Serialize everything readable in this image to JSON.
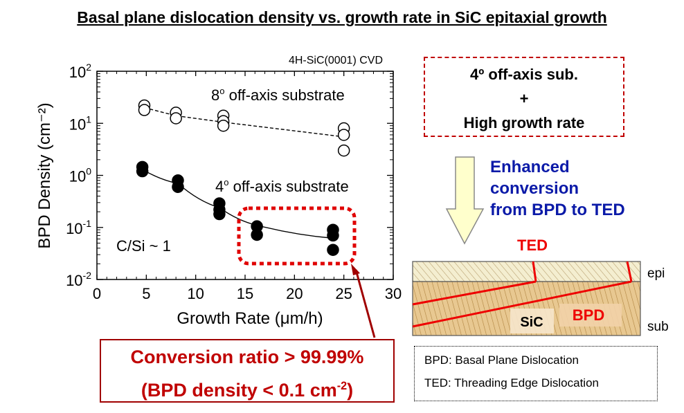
{
  "slide_title": "Basal plane dislocation density vs. growth rate in SiC epitaxial growth",
  "chart_data": {
    "type": "scatter",
    "annotation_condition": "4H-SiC(0001) CVD",
    "xlabel": "Growth Rate (μm/h)",
    "ylabel": "BPD Density (cm⁻²)",
    "xlim": [
      0,
      30
    ],
    "ylim_log10": [
      -2,
      2
    ],
    "y_scale": "log",
    "x_ticks": [
      "0",
      "5",
      "10",
      "15",
      "20",
      "25",
      "30"
    ],
    "y_ticks": [
      {
        "base": "10",
        "exp": "-2"
      },
      {
        "base": "10",
        "exp": "-1"
      },
      {
        "base": "10",
        "exp": "0"
      },
      {
        "base": "10",
        "exp": "1"
      },
      {
        "base": "10",
        "exp": "2"
      }
    ],
    "ratio_label": "C/Si ~ 1",
    "series": [
      {
        "name_base": "8",
        "name_sup": "o",
        "name_rest": " off-axis substrate",
        "marker": "open-circle",
        "line": "dashed",
        "points": [
          [
            4.8,
            22
          ],
          [
            4.8,
            18
          ],
          [
            8,
            16
          ],
          [
            8,
            12.5
          ],
          [
            12.8,
            14
          ],
          [
            12.8,
            11
          ],
          [
            12.8,
            9
          ],
          [
            25,
            8
          ],
          [
            25,
            6
          ],
          [
            25,
            3
          ]
        ],
        "trend": [
          [
            4.8,
            20
          ],
          [
            8,
            14
          ],
          [
            12.8,
            10.5
          ],
          [
            25,
            5.5
          ]
        ]
      },
      {
        "name_base": "4",
        "name_sup": "o",
        "name_rest": " off-axis substrate",
        "marker": "filled-circle",
        "line": "solid",
        "points": [
          [
            4.6,
            1.45
          ],
          [
            4.6,
            1.2
          ],
          [
            8.2,
            0.8
          ],
          [
            8.2,
            0.6
          ],
          [
            12.4,
            0.29
          ],
          [
            12.4,
            0.22
          ],
          [
            12.4,
            0.18
          ],
          [
            16.2,
            0.105
          ],
          [
            16.2,
            0.072
          ],
          [
            23.9,
            0.09
          ],
          [
            23.9,
            0.07
          ],
          [
            23.9,
            0.037
          ]
        ],
        "trend": [
          [
            4.6,
            1.3
          ],
          [
            8.2,
            0.7
          ],
          [
            12.4,
            0.24
          ],
          [
            16.2,
            0.11
          ],
          [
            23.9,
            0.062
          ]
        ]
      }
    ],
    "highlight_region_color": "#e00000"
  },
  "condition_box": {
    "line1": "4º off-axis sub.",
    "line2": "+",
    "line3": "High growth rate"
  },
  "result_text": {
    "line1": "Enhanced",
    "line2": "conversion",
    "line3": "from BPD to TED"
  },
  "schematic": {
    "ted_label": "TED",
    "epi_label": "epi",
    "sub_label": "sub",
    "sic_label": "SiC",
    "bpd_label": "BPD"
  },
  "legend": {
    "bpd": "BPD: Basal Plane Dislocation",
    "ted": "TED: Threading Edge Dislocation"
  },
  "conversion": {
    "line1": "Conversion ratio > 99.99%",
    "line2_a": "(BPD density < 0.1 cm",
    "line2_sup": "-2",
    "line2_b": ")"
  },
  "colors": {
    "red": "#e00000",
    "dark_red": "#a00000",
    "blue": "#0b1aa8",
    "arrow_fill": "#ffffcc",
    "epi_fill": "#f4eed0",
    "sub_fill": "#e8c891"
  }
}
